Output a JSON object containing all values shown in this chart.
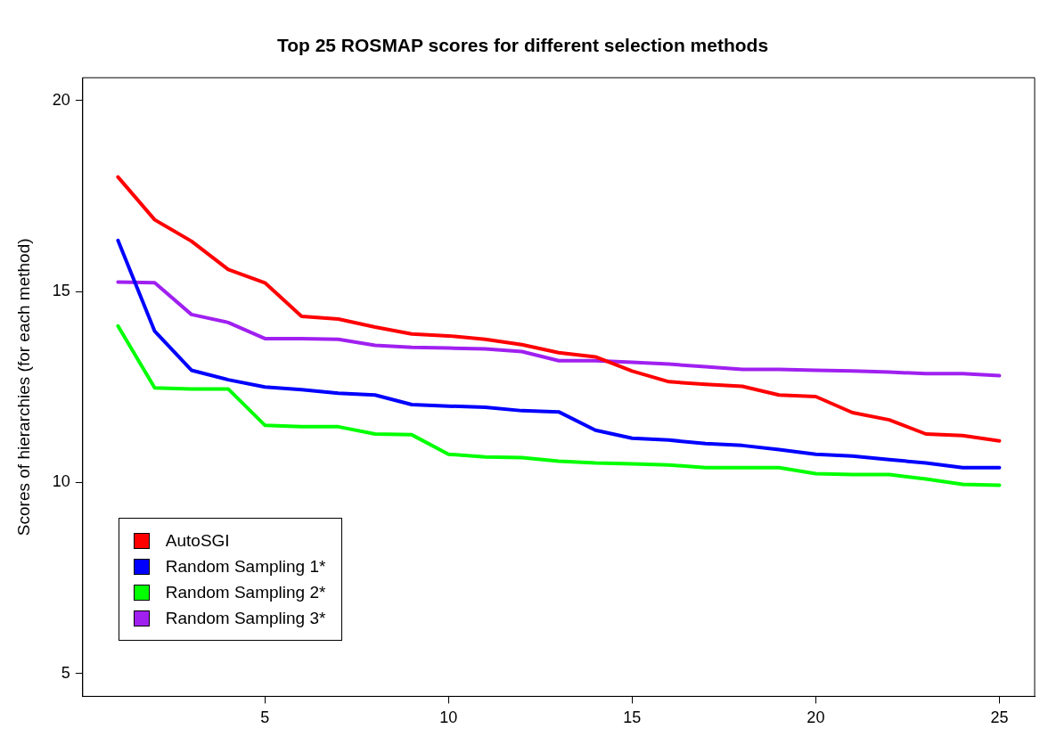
{
  "chart_data": {
    "type": "line",
    "title": "Top 25 ROSMAP scores for different selection methods",
    "ylabel": "Scores of hierarchies (for each method)",
    "x": [
      1,
      2,
      3,
      4,
      5,
      6,
      7,
      8,
      9,
      10,
      11,
      12,
      13,
      14,
      15,
      16,
      17,
      18,
      19,
      20,
      21,
      22,
      23,
      24,
      25
    ],
    "xlim": [
      0.04,
      25.96
    ],
    "xticks": [
      5,
      10,
      15,
      20,
      25
    ],
    "ylim": [
      4.4,
      20.6
    ],
    "yticks": [
      5,
      10,
      15,
      20
    ],
    "series": [
      {
        "name": "AutoSGI",
        "color": "#ff0000",
        "values": [
          18.0,
          16.88,
          16.32,
          15.58,
          15.23,
          14.35,
          14.28,
          14.07,
          13.89,
          13.84,
          13.75,
          13.61,
          13.4,
          13.29,
          12.92,
          12.64,
          12.57,
          12.52,
          12.29,
          12.25,
          11.83,
          11.64,
          11.27,
          11.23,
          11.09
        ]
      },
      {
        "name": "Random Sampling 1*",
        "color": "#0000ff",
        "values": [
          16.34,
          13.96,
          12.94,
          12.69,
          12.5,
          12.43,
          12.34,
          12.29,
          12.04,
          12.0,
          11.97,
          11.88,
          11.85,
          11.37,
          11.16,
          11.11,
          11.02,
          10.97,
          10.86,
          10.74,
          10.69,
          10.6,
          10.51,
          10.39,
          10.39
        ]
      },
      {
        "name": "Random Sampling 2*",
        "color": "#00ff00",
        "values": [
          14.1,
          12.48,
          12.45,
          12.45,
          11.5,
          11.46,
          11.46,
          11.27,
          11.25,
          10.74,
          10.67,
          10.65,
          10.56,
          10.51,
          10.49,
          10.46,
          10.39,
          10.39,
          10.39,
          10.23,
          10.21,
          10.21,
          10.09,
          9.95,
          9.93
        ]
      },
      {
        "name": "Random Sampling 3*",
        "color": "#a020f0",
        "values": [
          15.25,
          15.23,
          14.4,
          14.19,
          13.77,
          13.77,
          13.75,
          13.59,
          13.54,
          13.52,
          13.5,
          13.43,
          13.19,
          13.19,
          13.15,
          13.1,
          13.03,
          12.96,
          12.96,
          12.94,
          12.92,
          12.89,
          12.85,
          12.85,
          12.8
        ]
      }
    ],
    "legend": "bottom left",
    "grid": false,
    "marker": "none",
    "line_style": "solid"
  }
}
